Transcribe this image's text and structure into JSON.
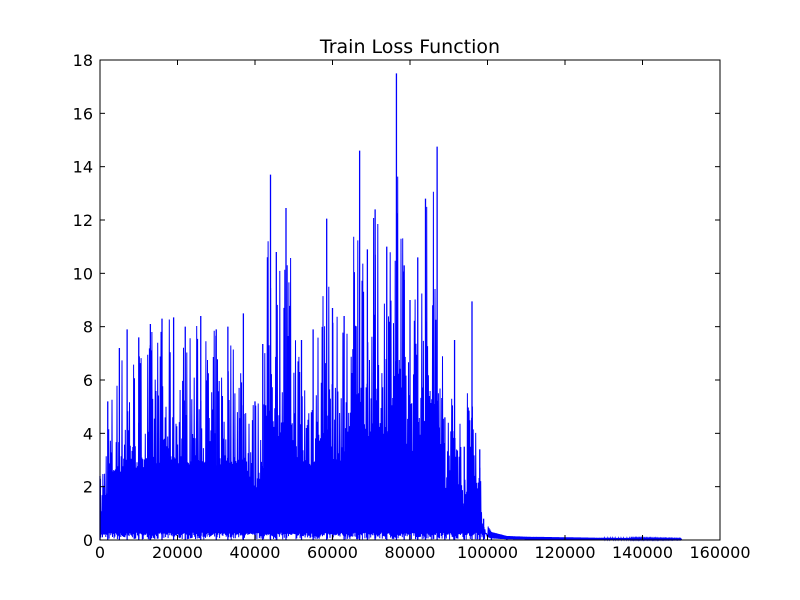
{
  "chart_data": {
    "type": "line",
    "title": "Train Loss Function",
    "xlabel": "",
    "ylabel": "",
    "xlim": [
      0,
      160000
    ],
    "ylim": [
      0,
      18
    ],
    "x_ticks": [
      "0",
      "20000",
      "40000",
      "60000",
      "80000",
      "100000",
      "120000",
      "140000",
      "160000"
    ],
    "y_ticks": [
      "0",
      "2",
      "4",
      "6",
      "8",
      "10",
      "12",
      "14",
      "16",
      "18"
    ],
    "grid": false,
    "legend": "none",
    "series": [
      {
        "color": "#0000ff",
        "x_range": [
          0,
          150000
        ],
        "description_points": {
          "x": [
            0,
            2000,
            5000,
            7000,
            10000,
            13000,
            16000,
            19000,
            22000,
            26000,
            30000,
            33000,
            37000,
            40000,
            42000,
            44000,
            45500,
            48000,
            52000,
            55000,
            58500,
            60000,
            63000,
            67000,
            69000,
            71000,
            74000,
            76500,
            78500,
            80000,
            82000,
            84000,
            87000,
            89000,
            91500,
            94000,
            96000,
            98000,
            99000,
            101000,
            105000,
            110000,
            120000,
            130000,
            140000,
            150000
          ],
          "y": [
            2.4,
            5.2,
            7.2,
            7.9,
            7.6,
            8.1,
            8.3,
            8.35,
            8.0,
            8.4,
            7.9,
            8.0,
            8.5,
            5.2,
            7.35,
            13.7,
            10.8,
            12.45,
            7.5,
            7.9,
            12.05,
            8.7,
            8.4,
            14.6,
            10.9,
            12.4,
            11.0,
            17.5,
            10.3,
            9.0,
            10.6,
            12.8,
            14.75,
            4.6,
            7.5,
            3.5,
            8.95,
            3.4,
            0.8,
            0.3,
            0.15,
            0.12,
            0.1,
            0.08,
            0.07,
            0.05
          ]
        }
      }
    ]
  }
}
